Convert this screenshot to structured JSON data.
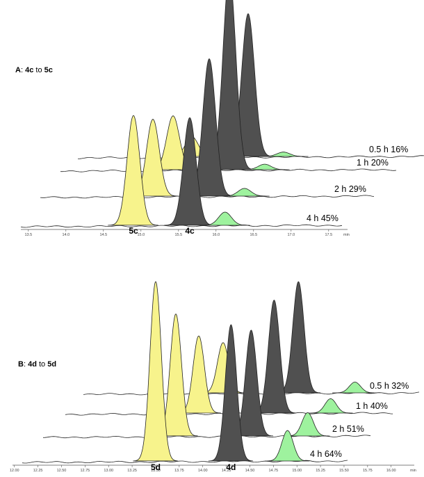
{
  "colors": {
    "product": "#f7f38c",
    "substrate": "#505050",
    "minor": "#9ef29e",
    "trace": "#222222"
  },
  "chart_data": [
    {
      "type": "line",
      "title": "A: 4c to 5c",
      "title_parts": [
        {
          "text": "A",
          "bold": true
        },
        {
          "text": ": ",
          "bold": false
        },
        {
          "text": "4c",
          "bold": true
        },
        {
          "text": " to ",
          "bold": false
        },
        {
          "text": "5c",
          "bold": true
        }
      ],
      "xlabel": "min",
      "xlim": [
        13.4,
        18.0
      ],
      "xticks": [
        "13.5",
        "14.0",
        "14.5",
        "15.0",
        "15.5",
        "16.0",
        "16.5",
        "17.0",
        "17.5"
      ],
      "peak_labels": [
        {
          "text": "5c",
          "x": 14.9
        },
        {
          "text": "4c",
          "x": 15.65
        }
      ],
      "traces": [
        {
          "label": "4 h 45%",
          "peaks": [
            {
              "x": 14.9,
              "h": 1.0,
              "kind": "product"
            },
            {
              "x": 15.65,
              "h": 0.98,
              "kind": "substrate"
            },
            {
              "x": 16.12,
              "h": 0.12,
              "kind": "minor"
            }
          ]
        },
        {
          "label": "2 h 29%",
          "peaks": [
            {
              "x": 14.9,
              "h": 0.7,
              "kind": "product"
            },
            {
              "x": 15.65,
              "h": 1.25,
              "kind": "substrate"
            },
            {
              "x": 16.12,
              "h": 0.07,
              "kind": "minor"
            }
          ]
        },
        {
          "label": "1 h 20%",
          "peaks": [
            {
              "x": 14.9,
              "h": 0.49,
              "kind": "product"
            },
            {
              "x": 15.65,
              "h": 1.78,
              "kind": "substrate"
            },
            {
              "x": 16.12,
              "h": 0.05,
              "kind": "minor"
            }
          ]
        },
        {
          "label": "0.5 h 16%",
          "peaks": [
            {
              "x": 14.9,
              "h": 0.18,
              "kind": "product"
            },
            {
              "x": 15.65,
              "h": 1.3,
              "kind": "substrate"
            },
            {
              "x": 16.12,
              "h": 0.04,
              "kind": "minor"
            }
          ]
        }
      ]
    },
    {
      "type": "line",
      "title": "B: 4d to 5d",
      "title_parts": [
        {
          "text": "B",
          "bold": true
        },
        {
          "text": ": ",
          "bold": false
        },
        {
          "text": "4d",
          "bold": true
        },
        {
          "text": " to ",
          "bold": false
        },
        {
          "text": "5d",
          "bold": true
        }
      ],
      "xlabel": "min",
      "xlim": [
        11.98,
        16.05
      ],
      "xticks": [
        "12.00",
        "12.25",
        "12.50",
        "12.75",
        "13.00",
        "13.25",
        "13.50",
        "13.75",
        "14.00",
        "14.25",
        "14.50",
        "14.75",
        "15.00",
        "15.25",
        "15.50",
        "15.75",
        "16.00"
      ],
      "peak_labels": [
        {
          "text": "5d",
          "x": 13.5
        },
        {
          "text": "4d",
          "x": 14.3
        }
      ],
      "traces": [
        {
          "label": "4 h 64%",
          "peaks": [
            {
              "x": 13.5,
              "h": 1.0,
              "kind": "product"
            },
            {
              "x": 14.3,
              "h": 0.76,
              "kind": "substrate"
            },
            {
              "x": 14.9,
              "h": 0.17,
              "kind": "minor"
            }
          ]
        },
        {
          "label": "2 h 51%",
          "peaks": [
            {
              "x": 13.5,
              "h": 0.68,
              "kind": "product"
            },
            {
              "x": 14.3,
              "h": 0.59,
              "kind": "substrate"
            },
            {
              "x": 14.9,
              "h": 0.13,
              "kind": "minor"
            }
          ]
        },
        {
          "label": "1 h 40%",
          "peaks": [
            {
              "x": 13.5,
              "h": 0.43,
              "kind": "product"
            },
            {
              "x": 14.3,
              "h": 0.63,
              "kind": "substrate"
            },
            {
              "x": 14.9,
              "h": 0.08,
              "kind": "minor"
            }
          ]
        },
        {
          "label": "0.5 h 32%",
          "peaks": [
            {
              "x": 13.5,
              "h": 0.28,
              "kind": "product"
            },
            {
              "x": 14.3,
              "h": 0.62,
              "kind": "substrate"
            },
            {
              "x": 14.9,
              "h": 0.06,
              "kind": "minor"
            }
          ]
        }
      ]
    }
  ]
}
